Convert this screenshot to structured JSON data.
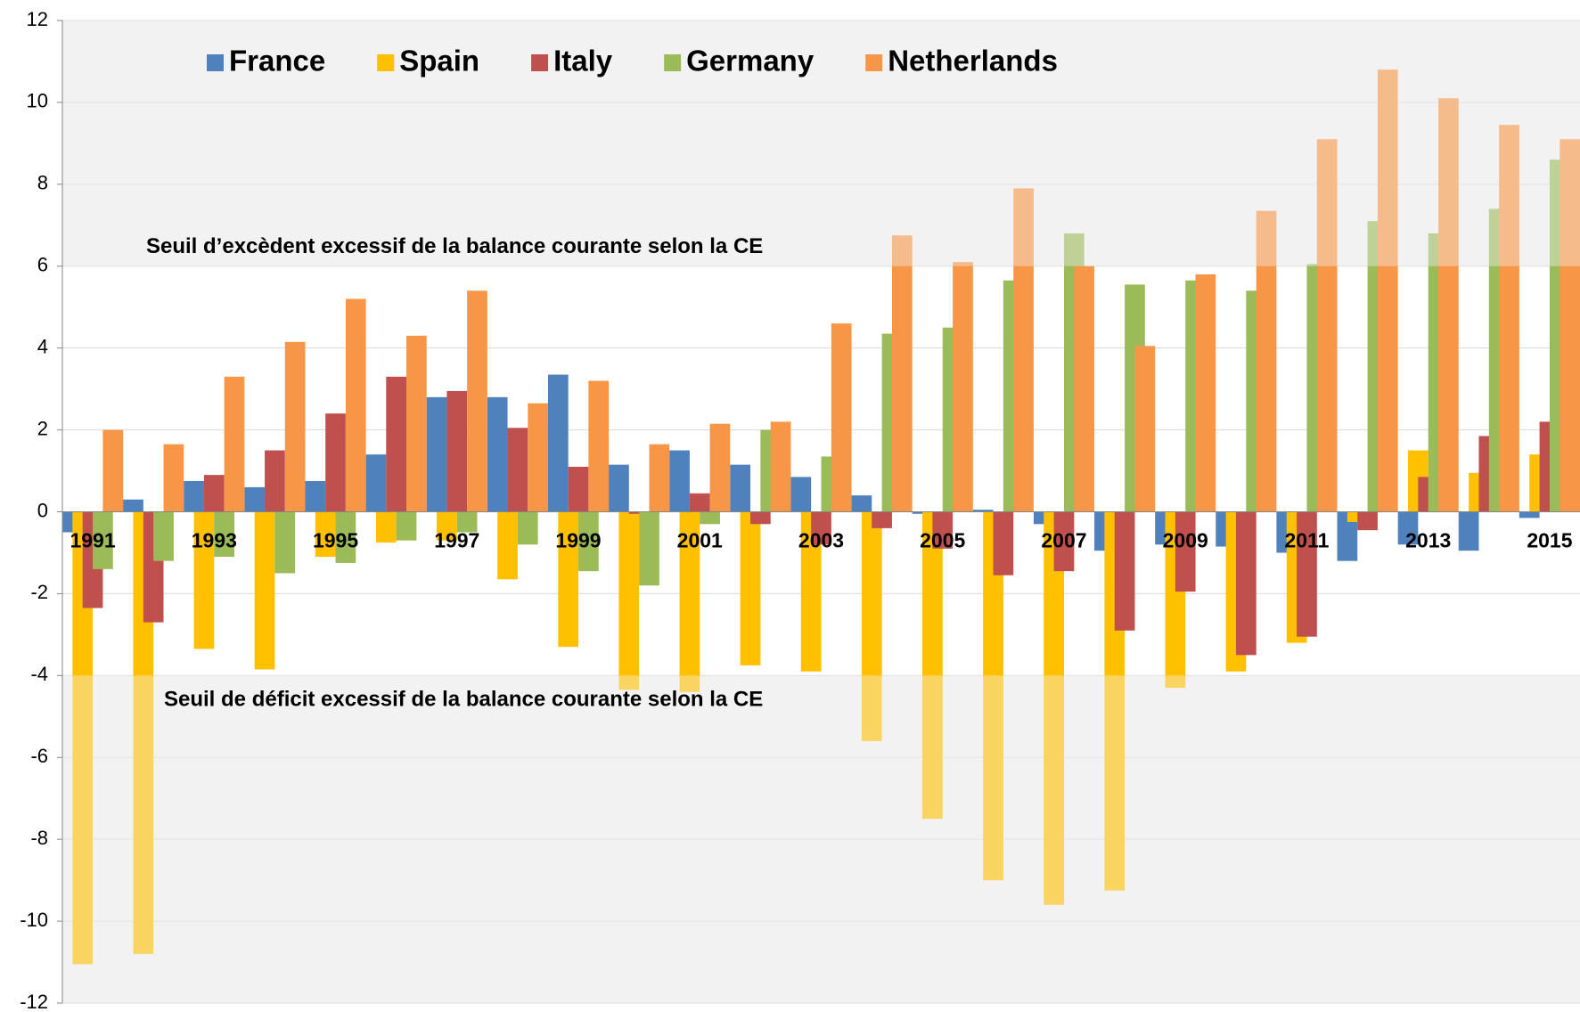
{
  "chart_data": {
    "type": "bar",
    "categories": [
      "1991",
      null,
      "1993",
      null,
      "1995",
      null,
      "1997",
      null,
      "1999",
      null,
      "2001",
      null,
      "2003",
      null,
      "2005",
      null,
      "2007",
      null,
      "2009",
      null,
      "2011",
      null,
      "2013",
      null,
      "2015"
    ],
    "series": [
      {
        "name": "France",
        "color": "#4f81bd",
        "values": [
          -0.5,
          0.3,
          0.75,
          0.6,
          0.75,
          1.4,
          2.8,
          2.8,
          3.35,
          1.15,
          1.5,
          1.15,
          0.85,
          0.4,
          -0.05,
          0.05,
          -0.3,
          -0.95,
          -0.8,
          -0.85,
          -1.0,
          -1.2,
          -0.8,
          -0.95,
          -0.15
        ]
      },
      {
        "name": "Spain",
        "color": "#ffc000",
        "values": [
          -11.05,
          -10.8,
          -3.35,
          -3.85,
          -1.1,
          -0.75,
          -0.7,
          -1.65,
          -3.3,
          -4.35,
          -4.4,
          -3.75,
          -3.9,
          -5.6,
          -7.5,
          -9.0,
          -9.6,
          -9.25,
          -4.3,
          -3.9,
          -3.2,
          -0.25,
          1.5,
          0.95,
          1.4
        ]
      },
      {
        "name": "Italy",
        "color": "#c0504d",
        "values": [
          -2.35,
          -2.7,
          0.9,
          1.5,
          2.4,
          3.3,
          2.95,
          2.05,
          1.1,
          -0.05,
          0.45,
          -0.3,
          -0.8,
          -0.4,
          -0.9,
          -1.55,
          -1.45,
          -2.9,
          -1.95,
          -3.5,
          -3.05,
          -0.45,
          0.85,
          1.85,
          2.2
        ]
      },
      {
        "name": "Germany",
        "color": "#9bbb59",
        "values": [
          -1.4,
          -1.2,
          -1.1,
          -1.5,
          -1.25,
          -0.7,
          -0.5,
          -0.8,
          -1.45,
          -1.8,
          -0.3,
          2.0,
          1.35,
          4.35,
          4.5,
          5.65,
          6.8,
          5.55,
          5.65,
          5.4,
          6.05,
          7.1,
          6.8,
          7.4,
          8.6
        ]
      },
      {
        "name": "Netherlands",
        "color": "#f79646",
        "values": [
          2.0,
          1.65,
          3.3,
          4.15,
          5.2,
          4.3,
          5.4,
          2.65,
          3.2,
          1.65,
          2.15,
          2.2,
          4.6,
          6.75,
          6.1,
          7.9,
          6.0,
          4.05,
          5.8,
          7.35,
          9.1,
          10.8,
          10.1,
          9.45,
          9.1
        ]
      }
    ],
    "thresholds": [
      {
        "label": "Seuil d’excèdent excessif de la balance courante selon la CE",
        "value": 6
      },
      {
        "label": "Seuil de déficit excessif de la balance courante selon la CE",
        "value": -4
      }
    ],
    "ylim": [
      -12,
      12
    ],
    "yticks": [
      -12,
      -10,
      -8,
      -6,
      -4,
      -2,
      0,
      2,
      4,
      6,
      8,
      10,
      12
    ],
    "grid": true,
    "legend": "top-left"
  }
}
